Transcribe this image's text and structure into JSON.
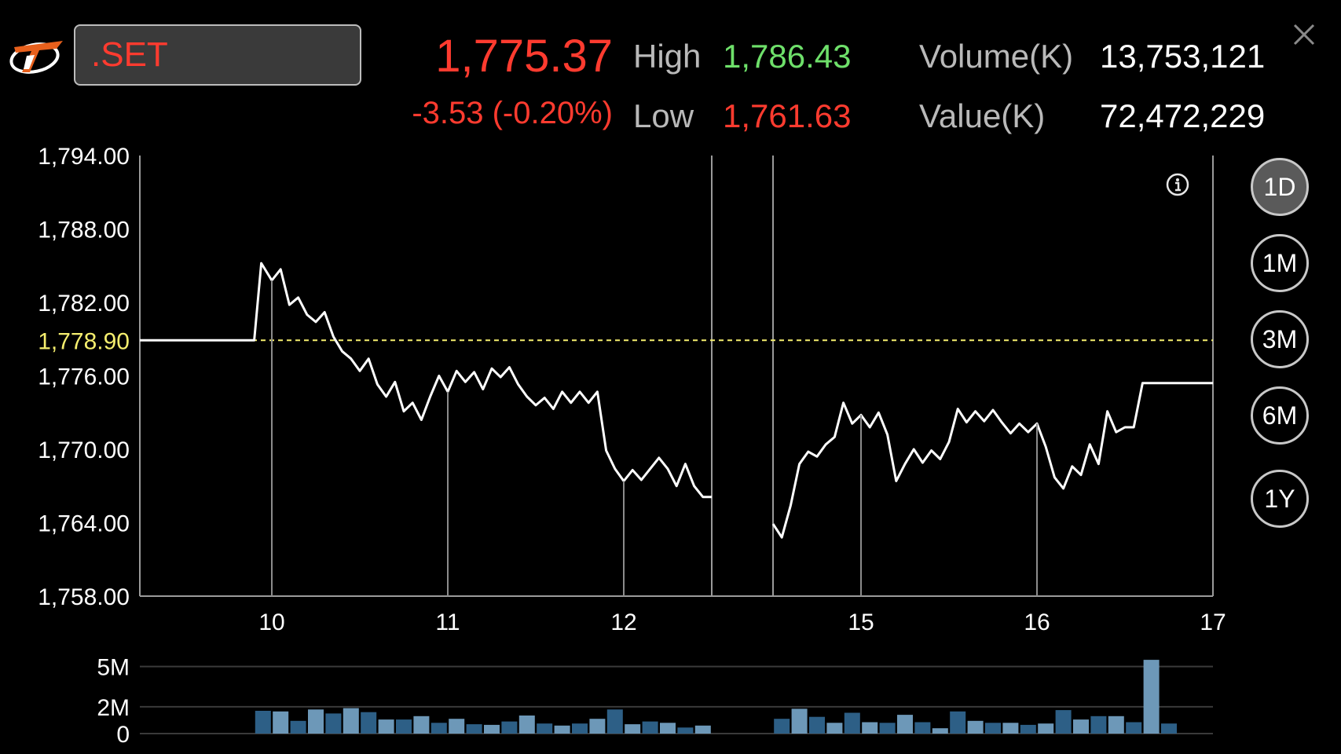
{
  "header": {
    "symbol": ".SET",
    "last": "1,775.37",
    "change": "-3.53 (-0.20%)",
    "high_label": "High",
    "high": "1,786.43",
    "low_label": "Low",
    "low": "1,761.63",
    "volume_label": "Volume(K)",
    "volume": "13,753,121",
    "value_label": "Value(K)",
    "value": "72,472,229"
  },
  "colors": {
    "down": "#ff3b2f",
    "up": "#6ee06a",
    "reference": "#f5ee6e",
    "volume_dark": "#2d5f86",
    "volume_light": "#6d98b8"
  },
  "icons": {
    "logo": "logo-icon",
    "close": "close-icon",
    "info": "info-icon"
  },
  "timeframes": [
    {
      "label": "1D",
      "active": true
    },
    {
      "label": "1M",
      "active": false
    },
    {
      "label": "3M",
      "active": false
    },
    {
      "label": "6M",
      "active": false
    },
    {
      "label": "1Y",
      "active": false
    }
  ],
  "chart_data": [
    {
      "type": "line",
      "ylim": [
        1758,
        1794
      ],
      "y_ticks": [
        "1,794.00",
        "1,788.00",
        "1,782.00",
        "1,776.00",
        "1,770.00",
        "1,764.00",
        "1,758.00"
      ],
      "y_tick_values": [
        1794,
        1788,
        1782,
        1776,
        1770,
        1764,
        1758
      ],
      "reference_label": "1,778.90",
      "reference_value": 1778.9,
      "x_tick_labels": [
        "10",
        "11",
        "12",
        "15",
        "16",
        "17"
      ],
      "x_tick_values": [
        10,
        11,
        12,
        15,
        16,
        17
      ],
      "xlim": [
        9.25,
        17
      ],
      "session_break": [
        12.5,
        14.5
      ],
      "series": [
        {
          "segments": [
            [
              [
                9.25,
                1778.9
              ],
              [
                9.9,
                1778.9
              ],
              [
                9.94,
                1785.2
              ],
              [
                10.0,
                1783.8
              ],
              [
                10.05,
                1784.7
              ],
              [
                10.1,
                1781.8
              ],
              [
                10.15,
                1782.4
              ],
              [
                10.2,
                1781
              ],
              [
                10.25,
                1780.4
              ],
              [
                10.3,
                1781.2
              ],
              [
                10.35,
                1779.2
              ],
              [
                10.4,
                1778
              ],
              [
                10.45,
                1777.4
              ],
              [
                10.5,
                1776.4
              ],
              [
                10.55,
                1777.4
              ],
              [
                10.6,
                1775.3
              ],
              [
                10.65,
                1774.3
              ],
              [
                10.7,
                1775.5
              ],
              [
                10.75,
                1773.1
              ],
              [
                10.8,
                1773.8
              ],
              [
                10.85,
                1772.4
              ],
              [
                10.9,
                1774.3
              ],
              [
                10.95,
                1776
              ],
              [
                11.0,
                1774.7
              ],
              [
                11.05,
                1776.4
              ],
              [
                11.1,
                1775.5
              ],
              [
                11.15,
                1776.3
              ],
              [
                11.2,
                1774.9
              ],
              [
                11.25,
                1776.6
              ],
              [
                11.3,
                1775.9
              ],
              [
                11.35,
                1776.7
              ],
              [
                11.4,
                1775.3
              ],
              [
                11.45,
                1774.3
              ],
              [
                11.5,
                1773.6
              ],
              [
                11.55,
                1774.2
              ],
              [
                11.6,
                1773.3
              ],
              [
                11.65,
                1774.7
              ],
              [
                11.7,
                1773.8
              ],
              [
                11.75,
                1774.7
              ],
              [
                11.8,
                1773.8
              ],
              [
                11.85,
                1774.7
              ],
              [
                11.9,
                1769.9
              ],
              [
                11.95,
                1768.4
              ],
              [
                12.0,
                1767.4
              ],
              [
                12.05,
                1768.3
              ],
              [
                12.1,
                1767.5
              ],
              [
                12.15,
                1768.4
              ],
              [
                12.2,
                1769.3
              ],
              [
                12.25,
                1768.4
              ],
              [
                12.3,
                1767
              ],
              [
                12.35,
                1768.8
              ],
              [
                12.4,
                1767
              ],
              [
                12.45,
                1766.1
              ],
              [
                12.5,
                1766.1
              ]
            ],
            [
              [
                14.5,
                1763.9
              ],
              [
                14.55,
                1762.8
              ],
              [
                14.6,
                1765.4
              ],
              [
                14.65,
                1768.8
              ],
              [
                14.7,
                1769.8
              ],
              [
                14.75,
                1769.4
              ],
              [
                14.8,
                1770.4
              ],
              [
                14.85,
                1771
              ],
              [
                14.9,
                1773.8
              ],
              [
                14.95,
                1772.1
              ],
              [
                15.0,
                1772.8
              ],
              [
                15.05,
                1771.8
              ],
              [
                15.1,
                1773
              ],
              [
                15.15,
                1771.2
              ],
              [
                15.2,
                1767.4
              ],
              [
                15.25,
                1768.8
              ],
              [
                15.3,
                1770
              ],
              [
                15.35,
                1768.9
              ],
              [
                15.4,
                1769.9
              ],
              [
                15.45,
                1769.2
              ],
              [
                15.5,
                1770.6
              ],
              [
                15.55,
                1773.3
              ],
              [
                15.6,
                1772.2
              ],
              [
                15.65,
                1773.1
              ],
              [
                15.7,
                1772.3
              ],
              [
                15.75,
                1773.2
              ],
              [
                15.8,
                1772.2
              ],
              [
                15.85,
                1771.3
              ],
              [
                15.9,
                1772.1
              ],
              [
                15.95,
                1771.4
              ],
              [
                16.0,
                1772.1
              ],
              [
                16.05,
                1770.2
              ],
              [
                16.1,
                1767.7
              ],
              [
                16.15,
                1766.8
              ],
              [
                16.2,
                1768.6
              ],
              [
                16.25,
                1767.9
              ],
              [
                16.3,
                1770.4
              ],
              [
                16.35,
                1768.8
              ],
              [
                16.4,
                1773.1
              ],
              [
                16.45,
                1771.4
              ],
              [
                16.5,
                1771.8
              ],
              [
                16.55,
                1771.8
              ],
              [
                16.6,
                1775.4
              ],
              [
                17.0,
                1775.4
              ]
            ]
          ]
        }
      ]
    },
    {
      "type": "bar",
      "ylim": [
        0,
        5.8
      ],
      "y_ticks": [
        "5M",
        "2M",
        "0"
      ],
      "y_tick_values": [
        5,
        2,
        0
      ],
      "unit": "M shares",
      "segments": [
        {
          "x_start": 9.95,
          "step": 0.1,
          "values": [
            1.7,
            1.65,
            0.95,
            1.8,
            1.5,
            1.9,
            1.6,
            1.05,
            1.05,
            1.3,
            0.8,
            1.1,
            0.7,
            0.65,
            0.9,
            1.35,
            0.75,
            0.6,
            0.75,
            1.1,
            1.8,
            0.7,
            0.9,
            0.8,
            0.45,
            0.6
          ]
        },
        {
          "x_start": 14.55,
          "step": 0.1,
          "values": [
            1.1,
            1.85,
            1.25,
            0.8,
            1.55,
            0.85,
            0.8,
            1.4,
            0.85,
            0.4,
            1.65,
            0.95,
            0.8,
            0.8,
            0.65,
            0.75,
            1.75,
            1.05,
            1.3,
            1.3,
            0.85,
            5.5,
            0.75
          ]
        }
      ]
    }
  ]
}
